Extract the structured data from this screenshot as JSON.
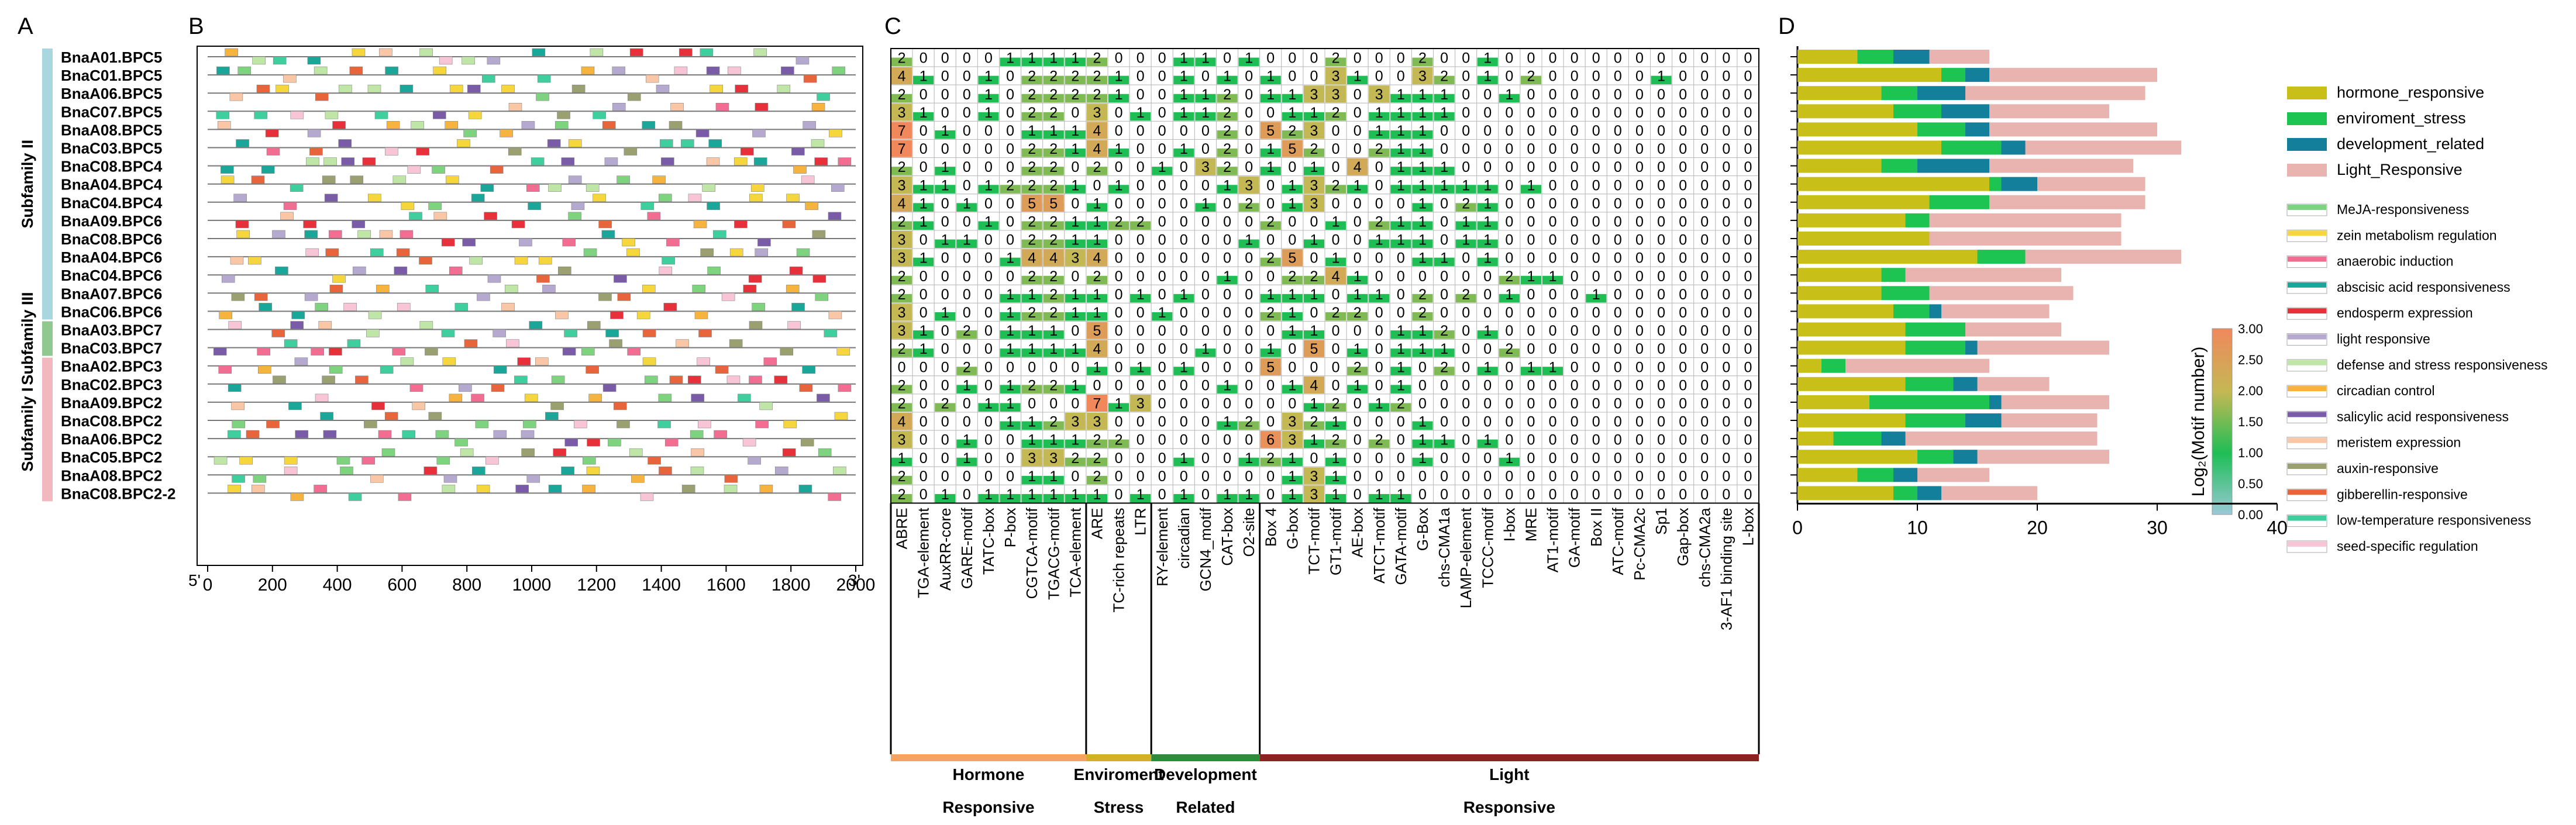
{
  "panel_labels": [
    "A",
    "B",
    "C",
    "D"
  ],
  "genes": [
    "BnaA01.BPC5",
    "BnaC01.BPC5",
    "BnaA06.BPC5",
    "BnaC07.BPC5",
    "BnaA08.BPC5",
    "BnaC03.BPC5",
    "BnaC08.BPC4",
    "BnaA04.BPC4",
    "BnaC04.BPC4",
    "BnaA09.BPC6",
    "BnaC08.BPC6",
    "BnaA04.BPC6",
    "BnaC04.BPC6",
    "BnaA07.BPC6",
    "BnaC06.BPC6",
    "BnaA03.BPC7",
    "BnaC03.BPC7",
    "BnaA02.BPC3",
    "BnaC02.BPC3",
    "BnaA09.BPC2",
    "BnaC08.BPC2",
    "BnaA06.BPC2",
    "BnaC05.BPC2",
    "BnaA08.BPC2",
    "BnaC08.BPC2-2"
  ],
  "subfamilies": [
    {
      "label": "Subfamily II",
      "start": 0,
      "end": 14,
      "color": "#a9d7e0"
    },
    {
      "label": "Subfamily III",
      "start": 15,
      "end": 16,
      "color": "#8fc98f"
    },
    {
      "label": "Subfamily I",
      "start": 17,
      "end": 24,
      "color": "#f2b8c0"
    }
  ],
  "panel_b": {
    "axis_ticks": [
      "0",
      "200",
      "400",
      "600",
      "800",
      "1000",
      "1200",
      "1400",
      "1600",
      "1800",
      "2000"
    ],
    "end_label_left": "5'",
    "end_label_right": "3'"
  },
  "elements": [
    "ABRE",
    "TGA-element",
    "AuxRR-core",
    "GARE-motif",
    "TATC-box",
    "P-box",
    "CGTCA-motif",
    "TGACG-motif",
    "TCA-element",
    "ARE",
    "TC-rich repeats",
    "LTR",
    "RY-element",
    "circadian",
    "GCN4_motif",
    "CAT-box",
    "O2-site",
    "Box 4",
    "G-box",
    "TCT-motif",
    "GT1-motif",
    "AE-box",
    "ATCT-motif",
    "GATA-motif",
    "G-Box",
    "chs-CMA1a",
    "LAMP-element",
    "TCCC-motif",
    "I-box",
    "MRE",
    "AT1-motif",
    "GA-motif",
    "Box II",
    "ATC-motif",
    "Pc-CMA2c",
    "Sp1",
    "Gap-box",
    "chs-CMA2a",
    "3-AF1 binding site",
    "L-box"
  ],
  "element_groups": [
    {
      "line1": "Hormone",
      "line2": "Responsive",
      "start": 0,
      "end": 8,
      "color": "#f4a460"
    },
    {
      "line1": "Enviroment",
      "line2": "Stress",
      "start": 9,
      "end": 11,
      "color": "#d4b026"
    },
    {
      "line1": "Development",
      "line2": "Related",
      "start": 12,
      "end": 16,
      "color": "#2e8b3a"
    },
    {
      "line1": "Light",
      "line2": "Responsive",
      "start": 17,
      "end": 39,
      "color": "#8b2323"
    }
  ],
  "heatmap": [
    [
      2,
      0,
      0,
      0,
      0,
      1,
      1,
      1,
      1,
      2,
      0,
      0,
      0,
      1,
      1,
      0,
      1,
      0,
      0,
      0,
      2,
      0,
      0,
      0,
      2,
      0,
      0,
      1,
      0,
      0,
      0,
      0,
      0,
      0,
      0,
      0,
      0,
      0,
      0,
      0
    ],
    [
      4,
      1,
      0,
      0,
      1,
      0,
      2,
      2,
      2,
      2,
      1,
      0,
      0,
      1,
      0,
      1,
      0,
      1,
      0,
      0,
      3,
      1,
      0,
      0,
      3,
      2,
      0,
      1,
      0,
      2,
      0,
      0,
      0,
      0,
      0,
      1,
      0,
      0,
      0,
      0
    ],
    [
      2,
      0,
      0,
      0,
      1,
      0,
      2,
      2,
      2,
      2,
      1,
      0,
      0,
      1,
      1,
      2,
      0,
      1,
      1,
      3,
      3,
      0,
      3,
      1,
      1,
      1,
      0,
      0,
      1,
      0,
      0,
      0,
      0,
      0,
      0,
      0,
      0,
      0,
      0,
      0
    ],
    [
      3,
      1,
      0,
      0,
      1,
      0,
      2,
      2,
      0,
      3,
      0,
      1,
      0,
      1,
      1,
      2,
      0,
      0,
      1,
      1,
      2,
      0,
      1,
      1,
      1,
      1,
      0,
      0,
      0,
      0,
      0,
      0,
      0,
      0,
      0,
      0,
      0,
      0,
      0,
      0
    ],
    [
      7,
      0,
      1,
      0,
      0,
      0,
      1,
      1,
      1,
      4,
      0,
      0,
      0,
      0,
      0,
      2,
      0,
      5,
      2,
      3,
      0,
      0,
      1,
      1,
      1,
      0,
      0,
      0,
      0,
      0,
      0,
      0,
      0,
      0,
      0,
      0,
      0,
      0,
      0,
      0
    ],
    [
      7,
      0,
      0,
      0,
      0,
      0,
      2,
      2,
      1,
      4,
      1,
      0,
      0,
      1,
      0,
      2,
      0,
      1,
      5,
      2,
      0,
      0,
      2,
      1,
      1,
      0,
      0,
      0,
      0,
      0,
      0,
      0,
      0,
      0,
      0,
      0,
      0,
      0,
      0,
      0
    ],
    [
      2,
      0,
      1,
      0,
      0,
      0,
      2,
      2,
      0,
      2,
      0,
      0,
      1,
      0,
      3,
      2,
      0,
      1,
      0,
      1,
      0,
      4,
      0,
      1,
      1,
      1,
      0,
      0,
      0,
      0,
      0,
      0,
      0,
      0,
      0,
      0,
      0,
      0,
      0,
      0
    ],
    [
      3,
      1,
      1,
      0,
      1,
      2,
      2,
      2,
      1,
      0,
      1,
      0,
      0,
      0,
      0,
      1,
      3,
      0,
      1,
      3,
      2,
      1,
      0,
      1,
      1,
      1,
      1,
      1,
      0,
      1,
      0,
      0,
      0,
      0,
      0,
      0,
      0,
      0,
      0,
      0
    ],
    [
      4,
      1,
      0,
      1,
      0,
      0,
      5,
      5,
      0,
      1,
      0,
      0,
      0,
      0,
      1,
      0,
      2,
      0,
      1,
      3,
      0,
      0,
      0,
      0,
      1,
      0,
      2,
      1,
      0,
      0,
      0,
      0,
      0,
      0,
      0,
      0,
      0,
      0,
      0,
      0
    ],
    [
      2,
      1,
      0,
      0,
      1,
      0,
      2,
      2,
      1,
      1,
      2,
      2,
      0,
      0,
      0,
      0,
      0,
      2,
      0,
      0,
      1,
      0,
      2,
      1,
      1,
      0,
      1,
      1,
      0,
      0,
      0,
      0,
      0,
      0,
      0,
      0,
      0,
      0,
      0,
      0
    ],
    [
      3,
      0,
      1,
      1,
      0,
      0,
      2,
      2,
      1,
      1,
      0,
      0,
      0,
      0,
      0,
      0,
      1,
      0,
      0,
      1,
      0,
      0,
      1,
      1,
      1,
      0,
      1,
      1,
      0,
      0,
      0,
      0,
      0,
      0,
      0,
      0,
      0,
      0,
      0,
      0
    ],
    [
      3,
      1,
      0,
      0,
      0,
      1,
      4,
      4,
      3,
      4,
      0,
      0,
      0,
      0,
      0,
      0,
      0,
      2,
      5,
      0,
      1,
      0,
      0,
      0,
      1,
      1,
      0,
      1,
      0,
      0,
      0,
      0,
      0,
      0,
      0,
      0,
      0,
      0,
      0,
      0
    ],
    [
      2,
      0,
      0,
      0,
      0,
      0,
      2,
      2,
      0,
      2,
      0,
      0,
      0,
      0,
      0,
      1,
      0,
      0,
      2,
      2,
      4,
      1,
      0,
      0,
      0,
      0,
      0,
      0,
      2,
      1,
      1,
      0,
      0,
      0,
      0,
      0,
      0,
      0,
      0,
      0
    ],
    [
      2,
      0,
      0,
      0,
      0,
      1,
      1,
      2,
      1,
      1,
      0,
      1,
      0,
      1,
      0,
      0,
      0,
      1,
      1,
      1,
      0,
      1,
      1,
      0,
      2,
      0,
      2,
      0,
      1,
      0,
      0,
      0,
      1,
      0,
      0,
      0,
      0,
      0,
      0,
      0
    ],
    [
      3,
      0,
      1,
      0,
      0,
      1,
      2,
      2,
      1,
      1,
      0,
      0,
      1,
      0,
      0,
      0,
      0,
      2,
      1,
      0,
      2,
      2,
      0,
      0,
      2,
      0,
      0,
      0,
      0,
      0,
      0,
      0,
      0,
      0,
      0,
      0,
      0,
      0,
      0,
      0
    ],
    [
      3,
      1,
      0,
      2,
      0,
      1,
      1,
      1,
      0,
      5,
      0,
      0,
      0,
      0,
      0,
      0,
      0,
      0,
      1,
      1,
      0,
      0,
      0,
      1,
      1,
      2,
      0,
      1,
      0,
      0,
      0,
      0,
      0,
      0,
      0,
      0,
      0,
      0,
      0,
      0
    ],
    [
      2,
      1,
      0,
      0,
      0,
      1,
      1,
      1,
      1,
      4,
      0,
      0,
      0,
      0,
      1,
      0,
      0,
      1,
      0,
      5,
      0,
      1,
      0,
      1,
      1,
      1,
      0,
      0,
      2,
      0,
      0,
      0,
      0,
      0,
      0,
      0,
      0,
      0,
      0,
      0
    ],
    [
      0,
      0,
      0,
      2,
      0,
      0,
      0,
      0,
      0,
      1,
      0,
      1,
      0,
      1,
      0,
      0,
      0,
      5,
      0,
      0,
      0,
      2,
      0,
      1,
      0,
      2,
      0,
      1,
      0,
      1,
      1,
      0,
      0,
      0,
      0,
      0,
      0,
      0,
      0,
      0
    ],
    [
      2,
      0,
      0,
      1,
      0,
      1,
      2,
      2,
      1,
      0,
      0,
      0,
      0,
      0,
      0,
      1,
      0,
      0,
      1,
      4,
      0,
      1,
      0,
      1,
      0,
      0,
      0,
      0,
      0,
      0,
      0,
      0,
      0,
      0,
      0,
      0,
      0,
      0,
      0,
      0
    ],
    [
      2,
      0,
      2,
      0,
      1,
      1,
      0,
      0,
      0,
      7,
      1,
      3,
      0,
      0,
      0,
      0,
      0,
      0,
      0,
      1,
      2,
      0,
      1,
      2,
      0,
      0,
      0,
      0,
      0,
      0,
      0,
      0,
      0,
      0,
      0,
      0,
      0,
      0,
      0,
      0
    ],
    [
      4,
      0,
      0,
      0,
      0,
      1,
      1,
      2,
      3,
      3,
      0,
      0,
      0,
      0,
      0,
      1,
      2,
      0,
      3,
      2,
      1,
      0,
      0,
      0,
      1,
      0,
      0,
      0,
      0,
      0,
      0,
      0,
      0,
      0,
      0,
      0,
      0,
      0,
      0,
      0
    ],
    [
      3,
      0,
      0,
      1,
      0,
      0,
      1,
      1,
      1,
      2,
      2,
      0,
      0,
      0,
      0,
      0,
      0,
      6,
      3,
      1,
      2,
      0,
      2,
      0,
      1,
      1,
      0,
      1,
      0,
      0,
      0,
      0,
      0,
      0,
      0,
      0,
      0,
      0,
      0,
      0
    ],
    [
      1,
      0,
      0,
      1,
      0,
      0,
      3,
      3,
      2,
      2,
      0,
      0,
      0,
      1,
      0,
      0,
      1,
      2,
      1,
      0,
      1,
      0,
      0,
      0,
      1,
      0,
      0,
      0,
      1,
      0,
      0,
      0,
      0,
      0,
      0,
      0,
      0,
      0,
      0,
      0
    ],
    [
      2,
      0,
      0,
      0,
      0,
      0,
      1,
      1,
      0,
      2,
      0,
      0,
      0,
      0,
      0,
      0,
      0,
      0,
      1,
      3,
      1,
      0,
      0,
      0,
      0,
      0,
      0,
      0,
      0,
      0,
      0,
      0,
      0,
      0,
      0,
      0,
      0,
      0,
      0,
      0
    ],
    [
      2,
      0,
      1,
      0,
      1,
      1,
      1,
      1,
      1,
      1,
      0,
      1,
      0,
      1,
      0,
      1,
      1,
      0,
      1,
      3,
      1,
      0,
      1,
      1,
      0,
      0,
      0,
      0,
      0,
      0,
      0,
      0,
      0,
      0,
      0,
      0,
      0,
      0,
      0,
      0
    ]
  ],
  "colorbar": {
    "ticks": [
      "3.00",
      "2.50",
      "2.00",
      "1.50",
      "1.00",
      "0.50",
      "0.00"
    ],
    "label": "Log₂(Motif number)"
  },
  "legend": [
    {
      "label": "hormone_responsive",
      "color": "#c8c018",
      "type": "bar"
    },
    {
      "label": "enviroment_stress",
      "color": "#1ec452",
      "type": "bar"
    },
    {
      "label": "development_related",
      "color": "#137f9a",
      "type": "bar"
    },
    {
      "label": "Light_Responsive",
      "color": "#e9b3b0",
      "type": "bar"
    },
    {
      "label": "MeJA-responsiveness",
      "color": "#7ed37e",
      "type": "motif"
    },
    {
      "label": "zein metabolism regulation",
      "color": "#f5d63c",
      "type": "motif"
    },
    {
      "label": "anaerobic induction",
      "color": "#f36d92",
      "type": "motif"
    },
    {
      "label": "abscisic acid responsiveness",
      "color": "#1aa79a",
      "type": "motif"
    },
    {
      "label": "endosperm expression",
      "color": "#e8303a",
      "type": "motif"
    },
    {
      "label": "light responsive",
      "color": "#b5a9cf",
      "type": "motif"
    },
    {
      "label": "defense and stress responsiveness",
      "color": "#bfe6a6",
      "type": "motif"
    },
    {
      "label": "circadian control",
      "color": "#f6b33e",
      "type": "motif"
    },
    {
      "label": "salicylic acid responsiveness",
      "color": "#7a5ba8",
      "type": "motif"
    },
    {
      "label": "meristem expression",
      "color": "#f9c6a6",
      "type": "motif"
    },
    {
      "label": "auxin-responsive",
      "color": "#9aa070",
      "type": "motif"
    },
    {
      "label": "gibberellin-responsive",
      "color": "#e8643a",
      "type": "motif"
    },
    {
      "label": "low-temperature responsiveness",
      "color": "#3fcf9f",
      "type": "motif"
    },
    {
      "label": "seed-specific regulation",
      "color": "#f7c5d5",
      "type": "motif"
    }
  ],
  "chart_data": {
    "type": "bar",
    "orientation": "horizontal",
    "stacked": true,
    "categories": [
      "BnaA01.BPC5",
      "BnaC01.BPC5",
      "BnaA06.BPC5",
      "BnaC07.BPC5",
      "BnaA08.BPC5",
      "BnaC03.BPC5",
      "BnaC08.BPC4",
      "BnaA04.BPC4",
      "BnaC04.BPC4",
      "BnaA09.BPC6",
      "BnaC08.BPC6",
      "BnaA04.BPC6",
      "BnaC04.BPC6",
      "BnaA07.BPC6",
      "BnaC06.BPC6",
      "BnaA03.BPC7",
      "BnaC03.BPC7",
      "BnaA02.BPC3",
      "BnaC02.BPC3",
      "BnaA09.BPC2",
      "BnaC08.BPC2",
      "BnaA06.BPC2",
      "BnaC05.BPC2",
      "BnaA08.BPC2",
      "BnaC08.BPC2-2"
    ],
    "series": [
      {
        "name": "hormone_responsive",
        "values": [
          5,
          12,
          7,
          8,
          10,
          12,
          7,
          16,
          11,
          9,
          11,
          15,
          7,
          7,
          8,
          9,
          9,
          2,
          9,
          6,
          9,
          3,
          10,
          5,
          8
        ]
      },
      {
        "name": "enviroment_stress",
        "values": [
          3,
          2,
          3,
          4,
          4,
          5,
          3,
          1,
          5,
          2,
          0,
          4,
          2,
          4,
          3,
          5,
          5,
          2,
          4,
          10,
          5,
          4,
          3,
          3,
          2
        ]
      },
      {
        "name": "development_related",
        "values": [
          3,
          2,
          4,
          4,
          2,
          2,
          6,
          3,
          0,
          0,
          0,
          0,
          0,
          0,
          1,
          0,
          1,
          0,
          2,
          1,
          3,
          2,
          2,
          2,
          2
        ]
      },
      {
        "name": "Light_Responsive",
        "values": [
          5,
          14,
          15,
          10,
          14,
          13,
          12,
          9,
          13,
          16,
          16,
          13,
          13,
          12,
          9,
          8,
          11,
          12,
          6,
          9,
          8,
          16,
          11,
          6,
          8
        ]
      }
    ],
    "xlim": [
      0,
      40
    ],
    "x_ticks": [
      0,
      10,
      20,
      30,
      40
    ],
    "title": "",
    "xlabel": "",
    "ylabel": ""
  }
}
